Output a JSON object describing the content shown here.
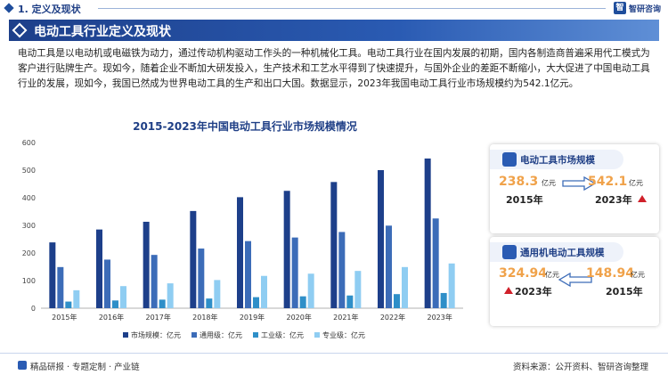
{
  "header": {
    "section_label": "1. 定义及现状",
    "logo_text": "智研咨询",
    "logo_mark": "智"
  },
  "banner": {
    "title": "电动工具行业定义及现状"
  },
  "intro": {
    "paragraph": "电动工具是以电动机或电磁铁为动力，通过传动机构驱动工作头的一种机械化工具。电动工具行业在国内发展的初期，国内各制造商普遍采用代工模式为客户进行贴牌生产。现如今，随着企业不断加大研发投入，生产技术和工艺水平得到了快速提升，与国外企业的差距不断缩小，大大促进了中国电动工具行业的发展，现如今，我国已然成为世界电动工具的生产和出口大国。数据显示，2023年我国电动工具行业市场规模约为542.1亿元。"
  },
  "chart_data": {
    "type": "bar",
    "title": "2015-2023年中国电动工具行业市场规模情况",
    "categories": [
      "2015年",
      "2016年",
      "2017年",
      "2018年",
      "2019年",
      "2020年",
      "2021年",
      "2022年",
      "2023年"
    ],
    "series": [
      {
        "name": "市场规模：亿元",
        "color": "#1d3f8a",
        "values": [
          238.3,
          285,
          313,
          352,
          402,
          425,
          457,
          500,
          542.1
        ]
      },
      {
        "name": "通用级：亿元",
        "color": "#3c6cb8",
        "values": [
          148.94,
          176,
          193,
          216,
          243,
          256,
          276,
          299,
          324.94
        ]
      },
      {
        "name": "工业级：亿元",
        "color": "#2f8fc8",
        "values": [
          24,
          28,
          31,
          35,
          40,
          43,
          46,
          51,
          55
        ]
      },
      {
        "name": "专业级：亿元",
        "color": "#8fcdf2",
        "values": [
          65,
          80,
          90,
          102,
          117,
          125,
          135,
          149,
          162
        ]
      }
    ],
    "yticks": [
      0,
      100,
      200,
      300,
      400,
      500,
      600
    ],
    "ylim": [
      0,
      600
    ],
    "grid": false,
    "legend": "bottom"
  },
  "card_market": {
    "title": "电动工具市场规模",
    "left_value": "238.3",
    "left_unit": "亿元",
    "left_year": "2015年",
    "right_value": "542.1",
    "right_unit": "亿元",
    "right_year": "2023年",
    "arrow_color": "#3c6cb8"
  },
  "card_general": {
    "title": "通用机电动工具规模",
    "left_value": "324.94",
    "left_unit": "亿元",
    "left_year": "2023年",
    "right_value": "148.94",
    "right_unit": "亿元",
    "right_year": "2015年",
    "arrow_color": "#3c6cb8"
  },
  "footer": {
    "left_text": "精品研报 · 专题定制 · 产业链",
    "source_text": "资料来源：公开资料、智研咨询整理"
  }
}
